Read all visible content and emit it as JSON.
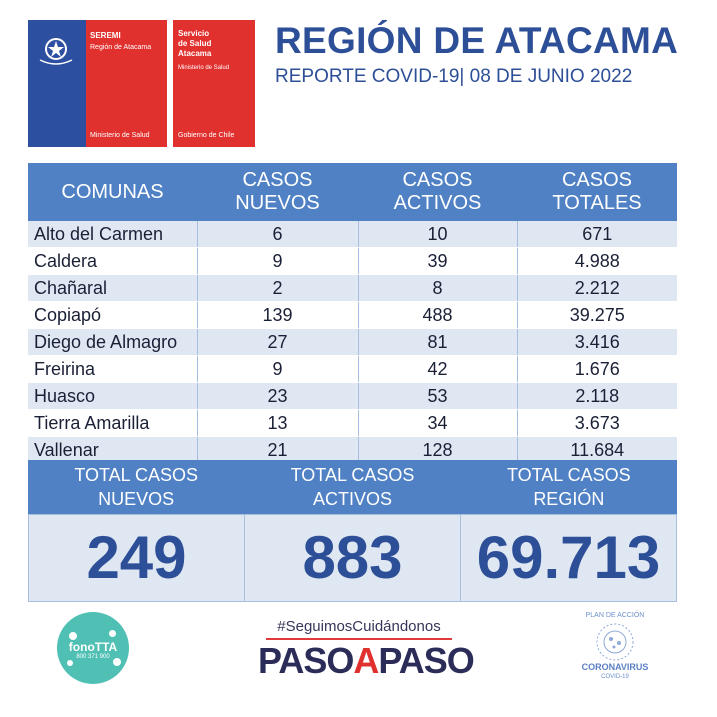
{
  "logos": {
    "seremi": {
      "line1": "SEREMI",
      "line2": "Región de Atacama",
      "bottom": "Ministerio de Salud"
    },
    "servicio": {
      "line1": "Servicio",
      "line2": "de Salud",
      "line3": "Atacama",
      "line4": "Ministerio de Salud",
      "bottom": "Gobierno de Chile"
    },
    "colors": {
      "blue": "#2d4fa0",
      "red": "#e0312f"
    }
  },
  "header": {
    "title": "REGIÓN DE ATACAMA",
    "subtitle": "REPORTE COVID-19| 08 DE JUNIO 2022"
  },
  "table": {
    "headers": [
      {
        "line1": "COMUNAS",
        "line2": ""
      },
      {
        "line1": "CASOS",
        "line2": "NUEVOS"
      },
      {
        "line1": "CASOS",
        "line2": "ACTIVOS"
      },
      {
        "line1": "CASOS",
        "line2": "TOTALES"
      }
    ],
    "rows": [
      [
        "Alto del Carmen",
        "6",
        "10",
        "671"
      ],
      [
        "Caldera",
        "9",
        "39",
        "4.988"
      ],
      [
        "Chañaral",
        "2",
        "8",
        "2.212"
      ],
      [
        "Copiapó",
        "139",
        "488",
        "39.275"
      ],
      [
        "Diego de Almagro",
        "27",
        "81",
        "3.416"
      ],
      [
        "Freirina",
        "9",
        "42",
        "1.676"
      ],
      [
        "Huasco",
        "23",
        "53",
        "2.118"
      ],
      [
        "Tierra Amarilla",
        "13",
        "34",
        "3.673"
      ],
      [
        "Vallenar",
        "21",
        "128",
        "11.684"
      ]
    ]
  },
  "totals": {
    "labels": [
      {
        "line1": "TOTAL CASOS",
        "line2": "NUEVOS"
      },
      {
        "line1": "TOTAL CASOS",
        "line2": "ACTIVOS"
      },
      {
        "line1": "TOTAL CASOS",
        "line2": "REGIÓN"
      }
    ],
    "values": [
      "249",
      "883",
      "69.713"
    ]
  },
  "footer": {
    "fono": {
      "name": "fonoTTA",
      "number": "800 371 900"
    },
    "hashtag": "#SeguimosCuidándonos",
    "paso": {
      "part1": "PASO",
      "part2": "A",
      "part3": "PASO"
    },
    "coronavirus": {
      "line1": "PLAN DE ACCIÓN",
      "line2": "CORONAVIRUS",
      "line3": "COVID-19"
    }
  },
  "colors": {
    "header_blue": "#4f81c4",
    "title_blue": "#2d4f97",
    "row_stripe": "#dfe7f3",
    "teal": "#4fc0b3"
  }
}
